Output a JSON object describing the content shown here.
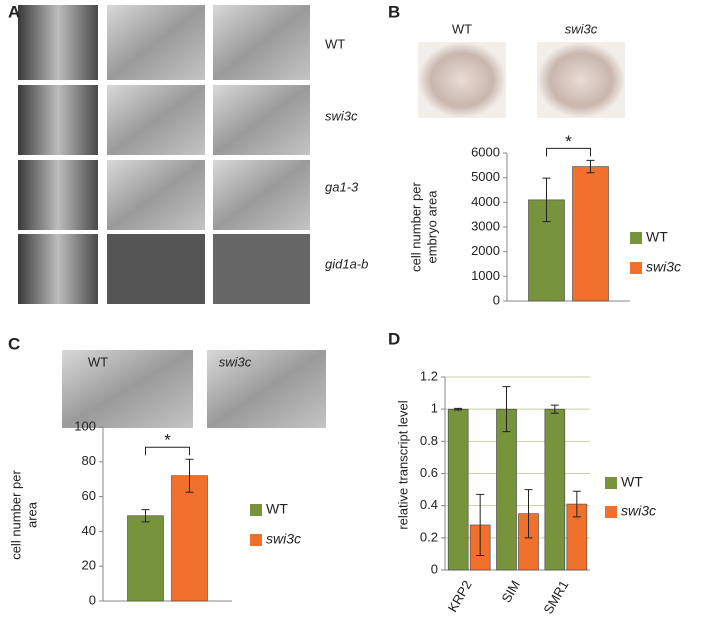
{
  "panel_labels": [
    "A",
    "B",
    "C",
    "D"
  ],
  "figure_a": {
    "row_labels": [
      "WT",
      "swi3c",
      "ga1-3",
      "gid1a-b"
    ]
  },
  "figure_b": {
    "image_labels": [
      "WT",
      "swi3c"
    ]
  },
  "figure_c": {
    "image_labels": [
      "WT",
      "swi3c"
    ]
  },
  "chart_data": [
    {
      "type": "bar",
      "ylabel": [
        "cell number per",
        "embryo area"
      ],
      "annotation": "*",
      "ylim": [
        0,
        6000
      ],
      "yticks": [
        0,
        1000,
        2000,
        3000,
        4000,
        5000,
        6000
      ],
      "grid": false,
      "series": [
        {
          "name": "WT",
          "color": "#77933c",
          "values": [
            4100
          ],
          "errors": [
            880
          ]
        },
        {
          "name": "swi3c",
          "color": "#f0702c",
          "values": [
            5450
          ],
          "errors": [
            250
          ]
        }
      ]
    },
    {
      "type": "bar",
      "ylabel": [
        "cell number per",
        "area"
      ],
      "annotation": "*",
      "ylim": [
        0,
        100
      ],
      "yticks": [
        0,
        20,
        40,
        60,
        80,
        100
      ],
      "grid": false,
      "series": [
        {
          "name": "WT",
          "color": "#77933c",
          "values": [
            49
          ],
          "errors": [
            3.5
          ]
        },
        {
          "name": "swi3c",
          "color": "#f0702c",
          "values": [
            72
          ],
          "errors": [
            9.5
          ]
        }
      ]
    },
    {
      "type": "bar",
      "ylabel": [
        "relative transcript level"
      ],
      "categories": [
        "KRP2",
        "SIM",
        "SMR1"
      ],
      "ylim": [
        0,
        1.2
      ],
      "yticks": [
        0,
        0.2,
        0.4,
        0.6,
        0.8,
        1,
        1.2
      ],
      "grid": true,
      "series": [
        {
          "name": "WT",
          "color": "#77933c",
          "values": [
            1,
            1,
            1
          ],
          "errors": [
            0.005,
            0.14,
            0.025
          ]
        },
        {
          "name": "swi3c",
          "color": "#f0702c",
          "values": [
            0.28,
            0.35,
            0.41
          ],
          "errors": [
            0.19,
            0.15,
            0.08
          ]
        }
      ]
    }
  ]
}
